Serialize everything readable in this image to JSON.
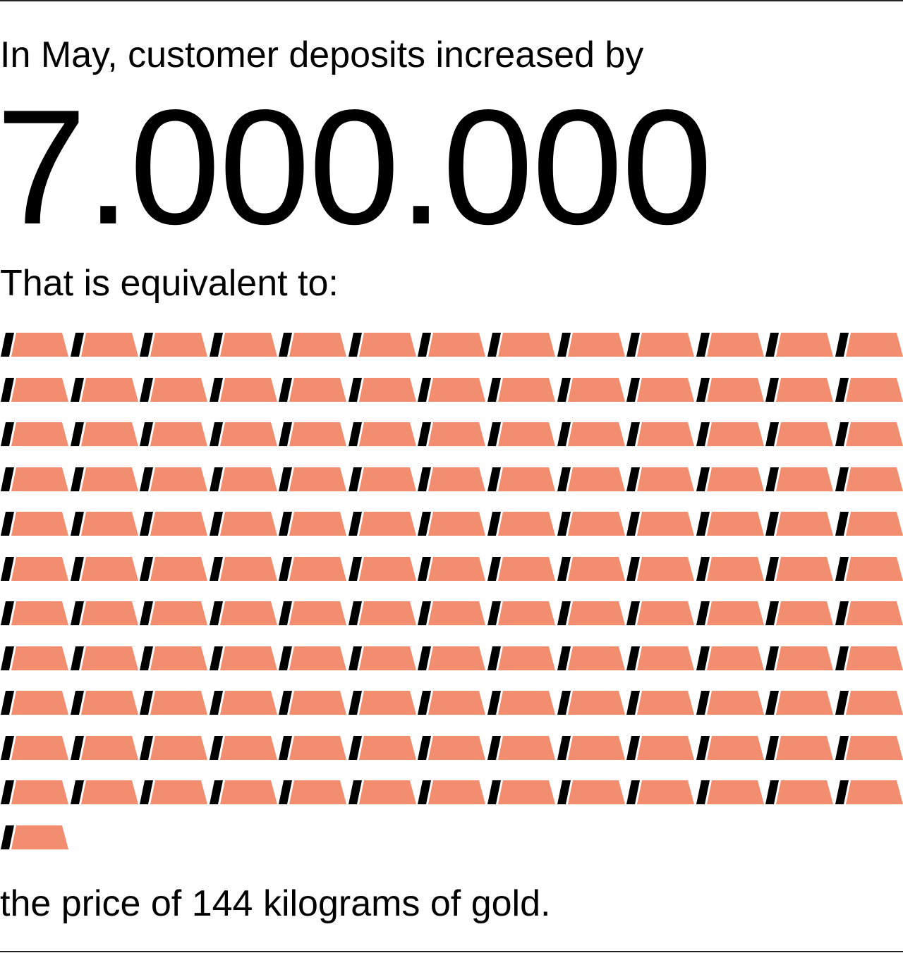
{
  "intro": "In May, customer deposits increased by",
  "amount": "7.000.000",
  "equivalent": "That is equivalent to:",
  "conclusion": {
    "before": "the price of",
    "amount": 144,
    "after": "kilograms of gold."
  }
}
